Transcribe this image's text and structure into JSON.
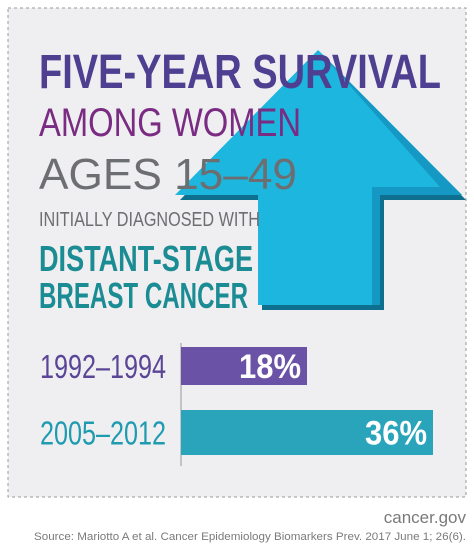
{
  "chart_data": {
    "type": "bar",
    "title_lines": [
      "FIVE-YEAR SURVIVAL",
      "AMONG WOMEN",
      "AGES 15–49",
      "INITIALLY DIAGNOSED WITH",
      "DISTANT-STAGE",
      "BREAST CANCER"
    ],
    "title_colors": [
      "#4e3f91",
      "#7a2b82",
      "#6d6e71",
      "#6d6e71",
      "#1b8c93",
      "#1b8c93"
    ],
    "categories": [
      "1992–1994",
      "2005–2012"
    ],
    "category_colors": [
      "#5b4596",
      "#1f9bb0"
    ],
    "values": [
      18,
      36
    ],
    "value_labels": [
      "18%",
      "36%"
    ],
    "colors": [
      "#6a53a6",
      "#2aa4bb"
    ],
    "source": "cancer.gov",
    "citation": "Source: Mariotto A et al. Cancer Epidemiology Biomarkers Prev. 2017 June 1; 26(6)."
  }
}
